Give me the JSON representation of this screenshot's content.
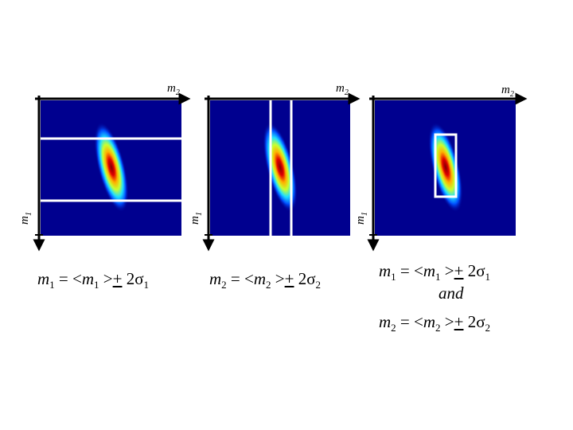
{
  "panels": [
    {
      "x_label": "m",
      "x_label_sub": "2",
      "y_label": "m",
      "y_label_sub": "1",
      "selection": "horizontal-band"
    },
    {
      "x_label": "m",
      "x_label_sub": "2",
      "y_label": "m",
      "y_label_sub": "1",
      "selection": "vertical-band"
    },
    {
      "x_label": "m",
      "x_label_sub": "2",
      "y_label": "m",
      "y_label_sub": "1",
      "selection": "box"
    }
  ],
  "captions": {
    "c1": {
      "lhs": "m",
      "lhs_sub": "1",
      "eq": " = <",
      "m": "m",
      "m_sub": "1",
      "gt": " >",
      "pm": "+",
      "two": " 2",
      "sigma": "σ",
      "sigma_sub": "1"
    },
    "c2": {
      "lhs": "m",
      "lhs_sub": "2",
      "eq": " = <",
      "m": "m",
      "m_sub": "2",
      "gt": " >",
      "pm": "+",
      "two": " 2",
      "sigma": "σ",
      "sigma_sub": "2"
    },
    "c3a": {
      "lhs": "m",
      "lhs_sub": "1",
      "eq": " = <",
      "m": "m",
      "m_sub": "1",
      "gt": " >",
      "pm": "+",
      "two": " 2",
      "sigma": "σ",
      "sigma_sub": "1"
    },
    "and": "and",
    "c3b": {
      "lhs": "m",
      "lhs_sub": "2",
      "eq": " = <",
      "m": "m",
      "m_sub": "2",
      "gt": " >",
      "pm": "+",
      "two": " 2",
      "sigma": "σ",
      "sigma_sub": "2"
    }
  },
  "colors": {
    "background": "#00008f",
    "peak": "#7f0000",
    "selection": "#ffffff",
    "axis": "#000000"
  }
}
